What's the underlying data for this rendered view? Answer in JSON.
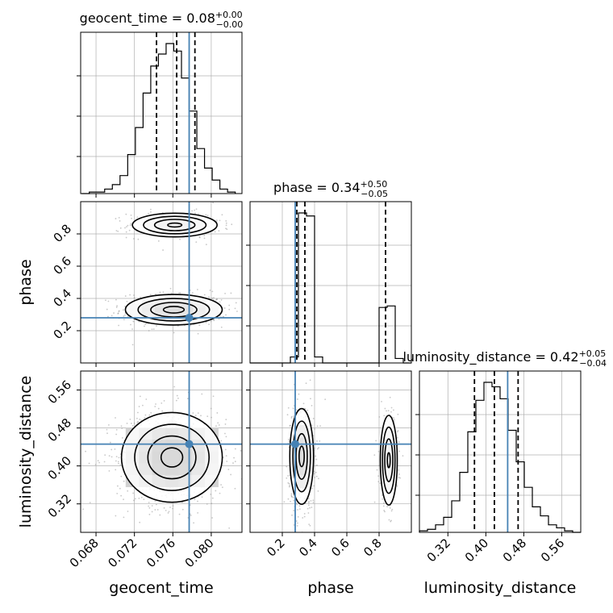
{
  "chart_data": {
    "type": "corner",
    "parameters": [
      "geocent_time",
      "phase",
      "luminosity_distance"
    ],
    "colors": {
      "truth": "#4682b4",
      "hist": "#000000",
      "grid": "#b0b0b0",
      "samples": "#9a9a9a"
    },
    "titles": [
      {
        "param": "geocent_time",
        "text": "geocent_time = 0.08",
        "sup": "+0.00",
        "sub": "−0.00"
      },
      {
        "param": "phase",
        "text": "phase = 0.34",
        "sup": "+0.50",
        "sub": "−0.05"
      },
      {
        "param": "luminosity_distance",
        "text": "luminosity_distance = 0.42",
        "sup": "+0.05",
        "sub": "−0.04"
      }
    ],
    "axes": {
      "geocent_time": {
        "range": [
          0.0664,
          0.0832
        ],
        "ticks": [
          0.068,
          0.072,
          0.076,
          0.08
        ],
        "tick_labels": [
          "0.068",
          "0.072",
          "0.076",
          "0.080"
        ]
      },
      "phase": {
        "range": [
          0.0,
          1.0
        ],
        "ticks": [
          0.2,
          0.4,
          0.6,
          0.8
        ],
        "tick_labels": [
          "0.2",
          "0.4",
          "0.6",
          "0.8"
        ]
      },
      "luminosity_distance": {
        "range": [
          0.26,
          0.6
        ],
        "ticks": [
          0.32,
          0.4,
          0.48,
          0.56
        ],
        "tick_labels": [
          "0.32",
          "0.40",
          "0.48",
          "0.56"
        ]
      }
    },
    "truths": {
      "geocent_time": 0.0777,
      "phase": 0.28,
      "luminosity_distance": 0.446
    },
    "quantiles": {
      "geocent_time": [
        0.0743,
        0.0764,
        0.0783
      ],
      "phase": [
        0.29,
        0.34,
        0.84
      ],
      "luminosity_distance": [
        0.376,
        0.418,
        0.468
      ]
    },
    "histograms": {
      "geocent_time": {
        "edges": [
          0.0665,
          0.0673,
          0.0681,
          0.0689,
          0.0697,
          0.0705,
          0.0713,
          0.0721,
          0.0729,
          0.0737,
          0.0745,
          0.0753,
          0.0761,
          0.0769,
          0.0777,
          0.0785,
          0.0793,
          0.0801,
          0.0809,
          0.0817,
          0.0825
        ],
        "counts": [
          0,
          1,
          1,
          3,
          6,
          12,
          26,
          44,
          67,
          85,
          93,
          100,
          95,
          77,
          55,
          30,
          17,
          9,
          3,
          1
        ]
      },
      "phase": {
        "edges": [
          0.0,
          0.05,
          0.1,
          0.15,
          0.2,
          0.25,
          0.3,
          0.35,
          0.4,
          0.45,
          0.5,
          0.55,
          0.6,
          0.65,
          0.7,
          0.75,
          0.8,
          0.85,
          0.9,
          0.95,
          1.0
        ],
        "counts": [
          0,
          0,
          0,
          0,
          0,
          4,
          100,
          98,
          4,
          0,
          0,
          0,
          0,
          0,
          0,
          0,
          37,
          38,
          3,
          0
        ]
      },
      "luminosity_distance": {
        "edges": [
          0.26,
          0.277,
          0.294,
          0.311,
          0.328,
          0.345,
          0.362,
          0.379,
          0.396,
          0.413,
          0.43,
          0.447,
          0.464,
          0.481,
          0.498,
          0.515,
          0.532,
          0.549,
          0.566,
          0.583,
          0.6
        ],
        "counts": [
          1,
          2,
          5,
          10,
          21,
          40,
          67,
          88,
          100,
          97,
          89,
          68,
          47,
          30,
          17,
          11,
          5,
          3,
          1,
          0
        ]
      }
    },
    "pairs": [
      {
        "x": "geocent_time",
        "y": "phase",
        "modes": [
          {
            "cx": 0.0761,
            "cy": 0.33,
            "sx": 0.0024,
            "sy": 0.045,
            "w": 0.68
          },
          {
            "cx": 0.0762,
            "cy": 0.855,
            "sx": 0.0021,
            "sy": 0.035,
            "w": 0.32
          }
        ]
      },
      {
        "x": "geocent_time",
        "y": "luminosity_distance",
        "modes": [
          {
            "cx": 0.0759,
            "cy": 0.418,
            "sx": 0.0025,
            "sy": 0.045,
            "w": 1.0
          }
        ]
      },
      {
        "x": "phase",
        "y": "luminosity_distance",
        "modes": [
          {
            "cx": 0.32,
            "cy": 0.42,
            "sx": 0.035,
            "sy": 0.048,
            "w": 0.7
          },
          {
            "cx": 0.86,
            "cy": 0.412,
            "sx": 0.025,
            "sy": 0.045,
            "w": 0.3
          }
        ]
      }
    ]
  }
}
